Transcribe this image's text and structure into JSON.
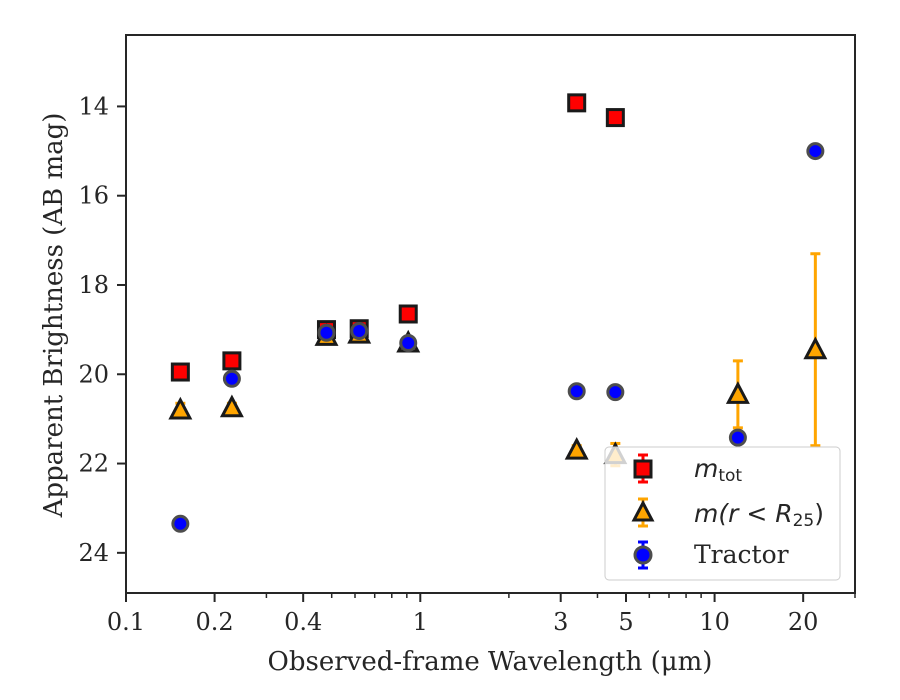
{
  "chart_data": {
    "type": "scatter",
    "title": "",
    "xlabel": "Observed-frame Wavelength (μm)",
    "ylabel": "Apparent Brightness (AB mag)",
    "xscale": "log",
    "xlim": [
      0.1,
      30
    ],
    "ylim": [
      24.9,
      12.4
    ],
    "y_inverted": true,
    "grid": false,
    "legend_position": "lower-right",
    "xticks": [
      {
        "value": 0.1,
        "label": "0.1"
      },
      {
        "value": 0.2,
        "label": "0.2"
      },
      {
        "value": 0.4,
        "label": "0.4"
      },
      {
        "value": 1,
        "label": "1"
      },
      {
        "value": 3,
        "label": "3"
      },
      {
        "value": 5,
        "label": "5"
      },
      {
        "value": 10,
        "label": "10"
      },
      {
        "value": 20,
        "label": "20"
      }
    ],
    "yticks": [
      {
        "value": 14,
        "label": "14"
      },
      {
        "value": 16,
        "label": "16"
      },
      {
        "value": 18,
        "label": "18"
      },
      {
        "value": 20,
        "label": "20"
      },
      {
        "value": 22,
        "label": "22"
      },
      {
        "value": 24,
        "label": "24"
      }
    ],
    "series": [
      {
        "legend": "m_tot",
        "marker": "square",
        "color": "#ff0000",
        "edge_color": "#1a1a1a",
        "points": [
          {
            "x": 0.153,
            "y": 19.95,
            "err_low": 0.05,
            "err_high": 0.05
          },
          {
            "x": 0.229,
            "y": 19.7,
            "err_low": 0.05,
            "err_high": 0.05
          },
          {
            "x": 0.48,
            "y": 19.0,
            "err_low": 0.05,
            "err_high": 0.05
          },
          {
            "x": 0.62,
            "y": 18.98,
            "err_low": 0.05,
            "err_high": 0.05
          },
          {
            "x": 0.91,
            "y": 18.65,
            "err_low": 0.05,
            "err_high": 0.05
          },
          {
            "x": 3.4,
            "y": 13.92,
            "err_low": 0.05,
            "err_high": 0.05
          },
          {
            "x": 4.6,
            "y": 14.25,
            "err_low": 0.05,
            "err_high": 0.05
          }
        ]
      },
      {
        "legend": "m(r < R_25)",
        "marker": "triangle",
        "color": "#ffa500",
        "edge_color": "#1a1a1a",
        "points": [
          {
            "x": 0.153,
            "y": 20.8,
            "err_low": 0.15,
            "err_high": 0.15
          },
          {
            "x": 0.229,
            "y": 20.75,
            "err_low": 0.1,
            "err_high": 0.1
          },
          {
            "x": 0.48,
            "y": 19.15,
            "err_low": 0.05,
            "err_high": 0.05
          },
          {
            "x": 0.62,
            "y": 19.1,
            "err_low": 0.05,
            "err_high": 0.05
          },
          {
            "x": 0.91,
            "y": 19.3,
            "err_low": 0.05,
            "err_high": 0.05
          },
          {
            "x": 3.4,
            "y": 21.7,
            "err_low": 0.1,
            "err_high": 0.1
          },
          {
            "x": 4.6,
            "y": 21.8,
            "err_low": 0.25,
            "err_high": 0.25
          },
          {
            "x": 12.0,
            "y": 20.45,
            "err_low": 0.75,
            "err_high": 0.75
          },
          {
            "x": 22.0,
            "y": 19.45,
            "err_low": 2.15,
            "err_high": 2.15
          }
        ]
      },
      {
        "legend": "Tractor",
        "marker": "circle",
        "color": "#0000ff",
        "edge_color": "#4d4d4d",
        "points": [
          {
            "x": 0.153,
            "y": 23.35,
            "err_low": 0.05,
            "err_high": 0.05
          },
          {
            "x": 0.229,
            "y": 20.1,
            "err_low": 0.05,
            "err_high": 0.05
          },
          {
            "x": 0.48,
            "y": 19.07,
            "err_low": 0.05,
            "err_high": 0.05
          },
          {
            "x": 0.62,
            "y": 19.03,
            "err_low": 0.05,
            "err_high": 0.05
          },
          {
            "x": 0.91,
            "y": 19.3,
            "err_low": 0.05,
            "err_high": 0.05
          },
          {
            "x": 3.4,
            "y": 20.38,
            "err_low": 0.05,
            "err_high": 0.05
          },
          {
            "x": 4.6,
            "y": 20.4,
            "err_low": 0.05,
            "err_high": 0.05
          },
          {
            "x": 12.0,
            "y": 21.42,
            "err_low": 0.05,
            "err_high": 0.05
          },
          {
            "x": 22.0,
            "y": 15.0,
            "err_low": 0.05,
            "err_high": 0.05
          }
        ]
      }
    ]
  },
  "legend": {
    "m_tot": {
      "main": "m",
      "sub": "tot"
    },
    "m_r25": {
      "prefix": "m(r < ",
      "R": "R",
      "sub": "25",
      "suffix": ")"
    },
    "tractor": "Tractor"
  }
}
